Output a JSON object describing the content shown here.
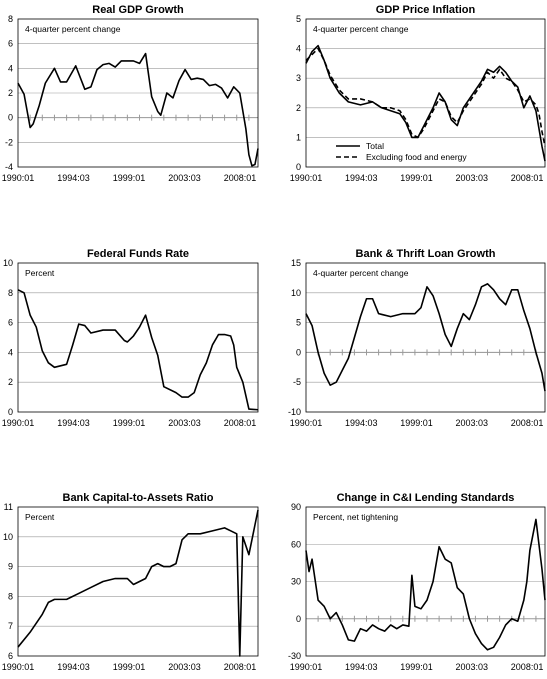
{
  "chart_data": [
    {
      "type": "line",
      "title": "Real GDP Growth",
      "annotation": "4-quarter percent change",
      "x_ticks": [
        "1990:01",
        "1994:03",
        "1999:01",
        "2003:03",
        "2008:01"
      ],
      "x_range": [
        1990.0,
        2009.75
      ],
      "ylim": [
        -4,
        8
      ],
      "y_ticks": [
        -4,
        -2,
        0,
        2,
        4,
        6,
        8
      ],
      "grid": true,
      "series": [
        {
          "style": "solid",
          "color": "#000000",
          "x": [
            1990.0,
            1990.5,
            1991.0,
            1991.25,
            1991.75,
            1992.25,
            1993.0,
            1993.5,
            1994.0,
            1994.75,
            1995.5,
            1996.0,
            1996.5,
            1997.0,
            1997.5,
            1998.0,
            1998.5,
            1999.0,
            1999.5,
            2000.0,
            2000.5,
            2001.0,
            2001.5,
            2001.75,
            2002.25,
            2002.75,
            2003.25,
            2003.75,
            2004.25,
            2004.75,
            2005.25,
            2005.75,
            2006.25,
            2006.75,
            2007.25,
            2007.75,
            2008.25,
            2008.75,
            2009.0,
            2009.25,
            2009.5,
            2009.75
          ],
          "y": [
            2.8,
            1.9,
            -0.8,
            -0.5,
            1.0,
            2.8,
            4.0,
            2.9,
            2.9,
            4.2,
            2.3,
            2.5,
            3.9,
            4.3,
            4.4,
            4.1,
            4.6,
            4.6,
            4.6,
            4.4,
            5.2,
            1.7,
            0.5,
            0.2,
            2.0,
            1.6,
            3.0,
            3.9,
            3.1,
            3.2,
            3.1,
            2.6,
            2.7,
            2.4,
            1.6,
            2.5,
            2.0,
            -0.9,
            -3.0,
            -3.9,
            -3.8,
            -2.5
          ]
        }
      ]
    },
    {
      "type": "line",
      "title": "GDP Price Inflation",
      "annotation": "4-quarter percent change",
      "x_ticks": [
        "1990:01",
        "1994:03",
        "1999:01",
        "2003:03",
        "2008:01"
      ],
      "x_range": [
        1990.0,
        2009.75
      ],
      "ylim": [
        0,
        5
      ],
      "y_ticks": [
        0,
        1,
        2,
        3,
        4,
        5
      ],
      "grid": true,
      "legend": {
        "entries": [
          "Total",
          "Excluding food and energy"
        ]
      },
      "series": [
        {
          "name": "Total",
          "style": "solid",
          "color": "#000000",
          "x": [
            1990.0,
            1990.5,
            1991.0,
            1991.5,
            1992.0,
            1992.75,
            1993.5,
            1994.5,
            1995.5,
            1996.25,
            1997.0,
            1997.75,
            1998.25,
            1998.75,
            1999.25,
            1999.75,
            2000.5,
            2001.0,
            2001.5,
            2002.0,
            2002.5,
            2003.0,
            2003.5,
            2004.0,
            2004.5,
            2005.0,
            2005.5,
            2006.0,
            2006.5,
            2007.0,
            2007.5,
            2008.0,
            2008.5,
            2009.0,
            2009.25,
            2009.5,
            2009.75
          ],
          "y": [
            3.5,
            3.9,
            4.1,
            3.6,
            3.0,
            2.5,
            2.2,
            2.1,
            2.2,
            2.0,
            1.9,
            1.8,
            1.5,
            1.0,
            1.0,
            1.4,
            2.0,
            2.5,
            2.2,
            1.6,
            1.4,
            2.0,
            2.3,
            2.6,
            2.9,
            3.3,
            3.2,
            3.4,
            3.2,
            2.9,
            2.7,
            2.0,
            2.4,
            1.9,
            1.3,
            0.7,
            0.2
          ]
        },
        {
          "name": "Excluding food and energy",
          "style": "dashed",
          "color": "#000000",
          "x": [
            1990.0,
            1990.5,
            1991.0,
            1991.5,
            1992.0,
            1992.75,
            1993.5,
            1994.5,
            1995.5,
            1996.25,
            1997.0,
            1997.75,
            1998.25,
            1998.75,
            1999.25,
            1999.75,
            2000.5,
            2001.0,
            2001.5,
            2002.0,
            2002.5,
            2003.0,
            2003.5,
            2004.0,
            2004.5,
            2005.0,
            2005.5,
            2006.0,
            2006.5,
            2007.0,
            2007.5,
            2008.0,
            2008.5,
            2009.0,
            2009.25,
            2009.5,
            2009.75
          ],
          "y": [
            3.6,
            3.8,
            4.0,
            3.6,
            3.1,
            2.6,
            2.3,
            2.3,
            2.2,
            2.0,
            2.0,
            1.9,
            1.6,
            1.1,
            1.0,
            1.3,
            1.9,
            2.3,
            2.2,
            1.7,
            1.5,
            1.9,
            2.2,
            2.5,
            2.8,
            3.2,
            3.0,
            3.3,
            3.0,
            2.9,
            2.6,
            2.2,
            2.3,
            2.1,
            1.8,
            1.2,
            0.7
          ]
        }
      ]
    },
    {
      "type": "line",
      "title": "Federal Funds Rate",
      "annotation": "Percent",
      "x_ticks": [
        "1990:01",
        "1994:03",
        "1999:01",
        "2003:03",
        "2008:01"
      ],
      "x_range": [
        1990.0,
        2009.75
      ],
      "ylim": [
        0,
        10
      ],
      "y_ticks": [
        0,
        2,
        4,
        6,
        8,
        10
      ],
      "grid": true,
      "series": [
        {
          "style": "solid",
          "color": "#000000",
          "x": [
            1990.0,
            1990.5,
            1991.0,
            1991.5,
            1992.0,
            1992.5,
            1993.0,
            1994.0,
            1994.5,
            1995.0,
            1995.5,
            1996.0,
            1997.0,
            1998.0,
            1998.75,
            1999.0,
            1999.5,
            2000.0,
            2000.5,
            2001.0,
            2001.5,
            2002.0,
            2003.0,
            2003.5,
            2004.0,
            2004.5,
            2005.0,
            2005.5,
            2006.0,
            2006.5,
            2007.0,
            2007.5,
            2007.75,
            2008.0,
            2008.5,
            2009.0,
            2009.75
          ],
          "y": [
            8.2,
            8.0,
            6.5,
            5.7,
            4.1,
            3.3,
            3.0,
            3.2,
            4.5,
            5.9,
            5.8,
            5.3,
            5.5,
            5.5,
            4.8,
            4.7,
            5.1,
            5.7,
            6.5,
            5.0,
            3.8,
            1.7,
            1.3,
            1.0,
            1.0,
            1.3,
            2.5,
            3.3,
            4.5,
            5.2,
            5.2,
            5.1,
            4.5,
            3.0,
            2.0,
            0.2,
            0.15
          ]
        }
      ]
    },
    {
      "type": "line",
      "title": "Bank & Thrift Loan Growth",
      "annotation": "4-quarter percent change",
      "x_ticks": [
        "1990:01",
        "1994:03",
        "1999:01",
        "2003:03",
        "2008:01"
      ],
      "x_range": [
        1990.0,
        2009.75
      ],
      "ylim": [
        -10,
        15
      ],
      "y_ticks": [
        -10,
        -5,
        0,
        5,
        10,
        15
      ],
      "grid": true,
      "series": [
        {
          "style": "solid",
          "color": "#000000",
          "x": [
            1990.0,
            1990.5,
            1991.0,
            1991.5,
            1992.0,
            1992.5,
            1993.0,
            1993.5,
            1994.0,
            1994.5,
            1995.0,
            1995.5,
            1996.0,
            1997.0,
            1998.0,
            1999.0,
            1999.5,
            2000.0,
            2000.5,
            2001.0,
            2001.5,
            2002.0,
            2002.5,
            2003.0,
            2003.5,
            2004.0,
            2004.5,
            2005.0,
            2005.5,
            2006.0,
            2006.5,
            2007.0,
            2007.5,
            2008.0,
            2008.5,
            2009.0,
            2009.5,
            2009.75
          ],
          "y": [
            6.5,
            4.5,
            0.0,
            -3.5,
            -5.5,
            -5.0,
            -3.0,
            -1.0,
            2.5,
            6.0,
            9.0,
            9.0,
            6.5,
            6.0,
            6.5,
            6.5,
            7.5,
            11.0,
            9.5,
            6.5,
            3.0,
            1.0,
            4.0,
            6.5,
            5.5,
            8.0,
            11.0,
            11.5,
            10.5,
            9.0,
            8.0,
            10.5,
            10.5,
            7.0,
            4.0,
            0.0,
            -3.5,
            -6.5
          ]
        }
      ]
    },
    {
      "type": "line",
      "title": "Bank Capital-to-Assets Ratio",
      "annotation": "Percent",
      "x_ticks": [
        "1990:01",
        "1994:03",
        "1999:01",
        "2003:03",
        "2008:01"
      ],
      "x_range": [
        1990.0,
        2009.75
      ],
      "ylim": [
        6,
        11
      ],
      "y_ticks": [
        6,
        7,
        8,
        9,
        10,
        11
      ],
      "grid": true,
      "series": [
        {
          "style": "solid",
          "color": "#000000",
          "x": [
            1990.0,
            1991.0,
            1992.0,
            1992.5,
            1993.0,
            1993.5,
            1994.0,
            1995.0,
            1995.5,
            1996.0,
            1997.0,
            1998.0,
            1999.0,
            1999.5,
            2000.0,
            2000.5,
            2001.0,
            2001.5,
            2002.0,
            2002.5,
            2003.0,
            2003.5,
            2004.0,
            2004.5,
            2005.0,
            2006.0,
            2007.0,
            2007.5,
            2008.0,
            2008.25,
            2008.5,
            2009.0,
            2009.5,
            2009.75
          ],
          "y": [
            6.3,
            6.8,
            7.4,
            7.8,
            7.9,
            7.9,
            7.9,
            8.1,
            8.2,
            8.3,
            8.5,
            8.6,
            8.6,
            8.4,
            8.5,
            8.6,
            9.0,
            9.1,
            9.0,
            9.0,
            9.1,
            9.9,
            10.1,
            10.1,
            10.1,
            10.2,
            10.3,
            10.2,
            10.1,
            6.0,
            10.0,
            9.4,
            10.4,
            10.9
          ]
        }
      ]
    },
    {
      "type": "line",
      "title": "Change in C&I Lending Standards",
      "annotation": "Percent, net tightening",
      "x_ticks": [
        "1990:01",
        "1994:03",
        "1999:01",
        "2003:03",
        "2008:01"
      ],
      "x_range": [
        1990.0,
        2009.75
      ],
      "ylim": [
        -30,
        90
      ],
      "y_ticks": [
        -30,
        0,
        30,
        60,
        90
      ],
      "grid": true,
      "series": [
        {
          "style": "solid",
          "color": "#000000",
          "x": [
            1990.0,
            1990.25,
            1990.5,
            1991.0,
            1991.5,
            1992.0,
            1992.5,
            1993.0,
            1993.5,
            1994.0,
            1994.5,
            1995.0,
            1995.5,
            1996.0,
            1996.5,
            1997.0,
            1997.5,
            1998.0,
            1998.5,
            1998.75,
            1999.0,
            1999.5,
            2000.0,
            2000.5,
            2001.0,
            2001.5,
            2002.0,
            2002.5,
            2003.0,
            2003.5,
            2004.0,
            2004.5,
            2005.0,
            2005.5,
            2006.0,
            2006.5,
            2007.0,
            2007.5,
            2008.0,
            2008.25,
            2008.5,
            2009.0,
            2009.5,
            2009.75
          ],
          "y": [
            55,
            38,
            48,
            15,
            10,
            0,
            5,
            -5,
            -17,
            -18,
            -8,
            -10,
            -5,
            -8,
            -10,
            -5,
            -8,
            -5,
            -6,
            35,
            10,
            8,
            15,
            30,
            58,
            48,
            45,
            25,
            20,
            0,
            -12,
            -20,
            -25,
            -23,
            -15,
            -5,
            0,
            -2,
            15,
            30,
            55,
            80,
            40,
            15
          ]
        }
      ]
    }
  ]
}
